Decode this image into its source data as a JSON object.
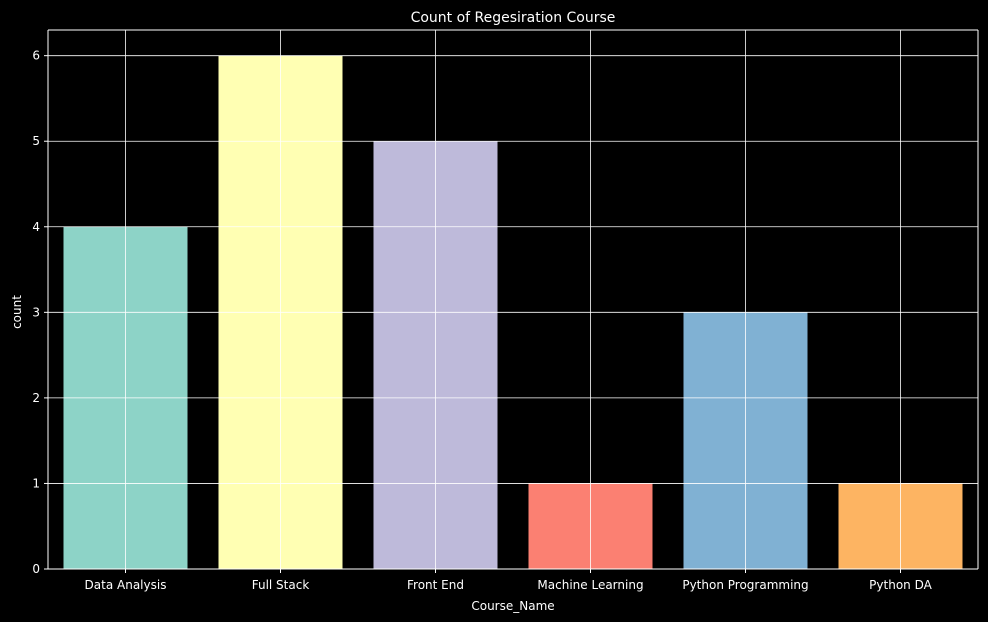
{
  "chart_data": {
    "type": "bar",
    "title": "Count of Regesiration Course",
    "xlabel": "Course_Name",
    "ylabel": "count",
    "categories": [
      "Data Analysis",
      "Full Stack",
      "Front End",
      "Machine Learning",
      "Python Programming",
      "Python DA"
    ],
    "values": [
      4,
      6,
      5,
      1,
      3,
      1
    ],
    "colors": [
      "#8dd3c7",
      "#ffffb3",
      "#bebada",
      "#fb8072",
      "#80b1d3",
      "#fdb462"
    ],
    "ylim": [
      0,
      6.3
    ],
    "yticks": [
      0,
      1,
      2,
      3,
      4,
      5,
      6
    ],
    "grid": true,
    "background": "#000000",
    "text_color": "#ffffff"
  }
}
